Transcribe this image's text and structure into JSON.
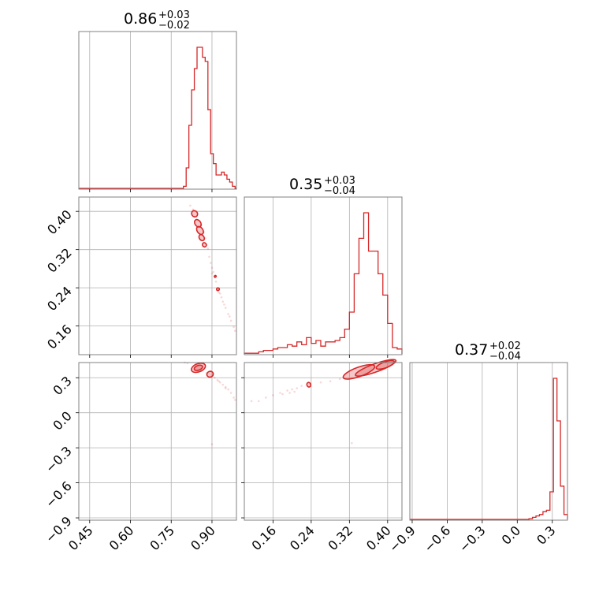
{
  "colors": {
    "series": "#d62728",
    "grid": "#b0b0b0",
    "frame": "#808080"
  },
  "chart_data": {
    "type": "corner",
    "parameters": [
      {
        "title_main": "0.86",
        "title_plus": "+0.03",
        "title_minus": "−0.02",
        "range": [
          0.41,
          0.99
        ],
        "ticks": [
          "0.45",
          "0.60",
          "0.75",
          "0.90"
        ]
      },
      {
        "title_main": "0.35",
        "title_plus": "+0.03",
        "title_minus": "−0.04",
        "range": [
          0.1,
          0.43
        ],
        "ticks": [
          "0.16",
          "0.24",
          "0.32",
          "0.40"
        ]
      },
      {
        "title_main": "0.37",
        "title_plus": "+0.02",
        "title_minus": "−0.04",
        "range": [
          -0.92,
          0.43
        ],
        "ticks": [
          "−0.9",
          "−0.6",
          "−0.3",
          "0.0",
          "0.3"
        ]
      }
    ],
    "histograms": [
      {
        "param": 0,
        "x": [
          0.8,
          0.81,
          0.82,
          0.83,
          0.84,
          0.85,
          0.86,
          0.87,
          0.88,
          0.89,
          0.9,
          0.91,
          0.92,
          0.93,
          0.94,
          0.95,
          0.96,
          0.97,
          0.98
        ],
        "counts": [
          2,
          15,
          45,
          70,
          85,
          100,
          100,
          93,
          90,
          56,
          25,
          18,
          10,
          10,
          12,
          10,
          7,
          5,
          2
        ]
      },
      {
        "param": 1,
        "x": [
          0.105,
          0.115,
          0.125,
          0.135,
          0.145,
          0.155,
          0.165,
          0.175,
          0.185,
          0.195,
          0.205,
          0.215,
          0.225,
          0.235,
          0.245,
          0.255,
          0.265,
          0.275,
          0.285,
          0.295,
          0.305,
          0.315,
          0.325,
          0.335,
          0.345,
          0.355,
          0.365,
          0.375,
          0.385,
          0.395,
          0.405,
          0.415,
          0.425
        ],
        "counts": [
          1,
          1,
          1,
          2,
          3,
          3,
          4,
          5,
          5,
          7,
          6,
          9,
          7,
          12,
          8,
          10,
          6,
          9,
          9,
          10,
          12,
          18,
          30,
          57,
          82,
          100,
          73,
          73,
          57,
          42,
          22,
          5,
          4
        ]
      },
      {
        "param": 2,
        "x": [
          0.115,
          0.145,
          0.175,
          0.205,
          0.235,
          0.265,
          0.295,
          0.325,
          0.355,
          0.385,
          0.415
        ],
        "counts": [
          1,
          2,
          3,
          4,
          6,
          7,
          20,
          100,
          70,
          24,
          4
        ]
      }
    ],
    "scatter_2d": [
      {
        "x_param": 0,
        "y_param": 1,
        "points": [
          [
            0.82,
            0.412
          ],
          [
            0.83,
            0.404
          ],
          [
            0.86,
            0.372
          ],
          [
            0.87,
            0.357
          ],
          [
            0.875,
            0.344
          ],
          [
            0.88,
            0.33
          ],
          [
            0.885,
            0.322
          ],
          [
            0.89,
            0.305
          ],
          [
            0.895,
            0.292
          ],
          [
            0.9,
            0.282
          ],
          [
            0.905,
            0.273
          ],
          [
            0.91,
            0.262
          ],
          [
            0.915,
            0.253
          ],
          [
            0.925,
            0.236
          ],
          [
            0.93,
            0.228
          ],
          [
            0.935,
            0.22
          ],
          [
            0.94,
            0.211
          ],
          [
            0.95,
            0.198
          ],
          [
            0.96,
            0.185
          ],
          [
            0.97,
            0.171
          ],
          [
            0.98,
            0.158
          ],
          [
            0.985,
            0.15
          ],
          [
            0.9,
            0.27
          ],
          [
            0.925,
            0.23
          ],
          [
            0.945,
            0.205
          ],
          [
            0.965,
            0.18
          ]
        ],
        "contours": [
          {
            "cx": 0.836,
            "cy": 0.395,
            "rx": 0.012,
            "ry": 0.006
          },
          {
            "cx": 0.848,
            "cy": 0.375,
            "rx": 0.015,
            "ry": 0.006
          },
          {
            "cx": 0.856,
            "cy": 0.36,
            "rx": 0.016,
            "ry": 0.006
          },
          {
            "cx": 0.862,
            "cy": 0.345,
            "rx": 0.012,
            "ry": 0.005
          },
          {
            "cx": 0.872,
            "cy": 0.33,
            "rx": 0.008,
            "ry": 0.004
          },
          {
            "cx": 0.912,
            "cy": 0.264,
            "rx": 0.003,
            "ry": 0.002
          },
          {
            "cx": 0.922,
            "cy": 0.237,
            "rx": 0.005,
            "ry": 0.003
          }
        ]
      },
      {
        "x_param": 0,
        "y_param": 2,
        "points": [
          [
            0.8,
            0.43
          ],
          [
            0.81,
            0.425
          ],
          [
            0.84,
            0.415
          ],
          [
            0.88,
            0.34
          ],
          [
            0.9,
            0.32
          ],
          [
            0.91,
            0.3
          ],
          [
            0.92,
            0.28
          ],
          [
            0.93,
            0.26
          ],
          [
            0.94,
            0.24
          ],
          [
            0.95,
            0.22
          ],
          [
            0.96,
            0.2
          ],
          [
            0.97,
            0.17
          ],
          [
            0.98,
            0.13
          ],
          [
            0.985,
            0.11
          ],
          [
            0.95,
            0.21
          ],
          [
            0.925,
            0.27
          ],
          [
            0.9,
            -0.27
          ]
        ],
        "contours": [
          {
            "cx": 0.85,
            "cy": 0.385,
            "rx": 0.027,
            "ry": 0.035
          },
          {
            "cx": 0.85,
            "cy": 0.385,
            "rx": 0.016,
            "ry": 0.02
          },
          {
            "cx": 0.893,
            "cy": 0.33,
            "rx": 0.012,
            "ry": 0.025
          }
        ]
      },
      {
        "x_param": 1,
        "y_param": 2,
        "points": [
          [
            0.115,
            0.1
          ],
          [
            0.13,
            0.1
          ],
          [
            0.145,
            0.13
          ],
          [
            0.16,
            0.15
          ],
          [
            0.175,
            0.17
          ],
          [
            0.19,
            0.19
          ],
          [
            0.2,
            0.2
          ],
          [
            0.21,
            0.21
          ],
          [
            0.22,
            0.23
          ],
          [
            0.26,
            0.26
          ],
          [
            0.28,
            0.27
          ],
          [
            0.3,
            0.29
          ],
          [
            0.325,
            -0.26
          ],
          [
            0.18,
            0.16
          ],
          [
            0.195,
            0.17
          ],
          [
            0.205,
            0.18
          ]
        ],
        "contours": [
          {
            "cx": 0.34,
            "cy": 0.35,
            "rx": 0.035,
            "ry": 0.04
          },
          {
            "cx": 0.375,
            "cy": 0.385,
            "rx": 0.045,
            "ry": 0.035
          },
          {
            "cx": 0.395,
            "cy": 0.41,
            "rx": 0.02,
            "ry": 0.025
          },
          {
            "cx": 0.235,
            "cy": 0.24,
            "rx": 0.004,
            "ry": 0.02
          }
        ]
      }
    ]
  }
}
